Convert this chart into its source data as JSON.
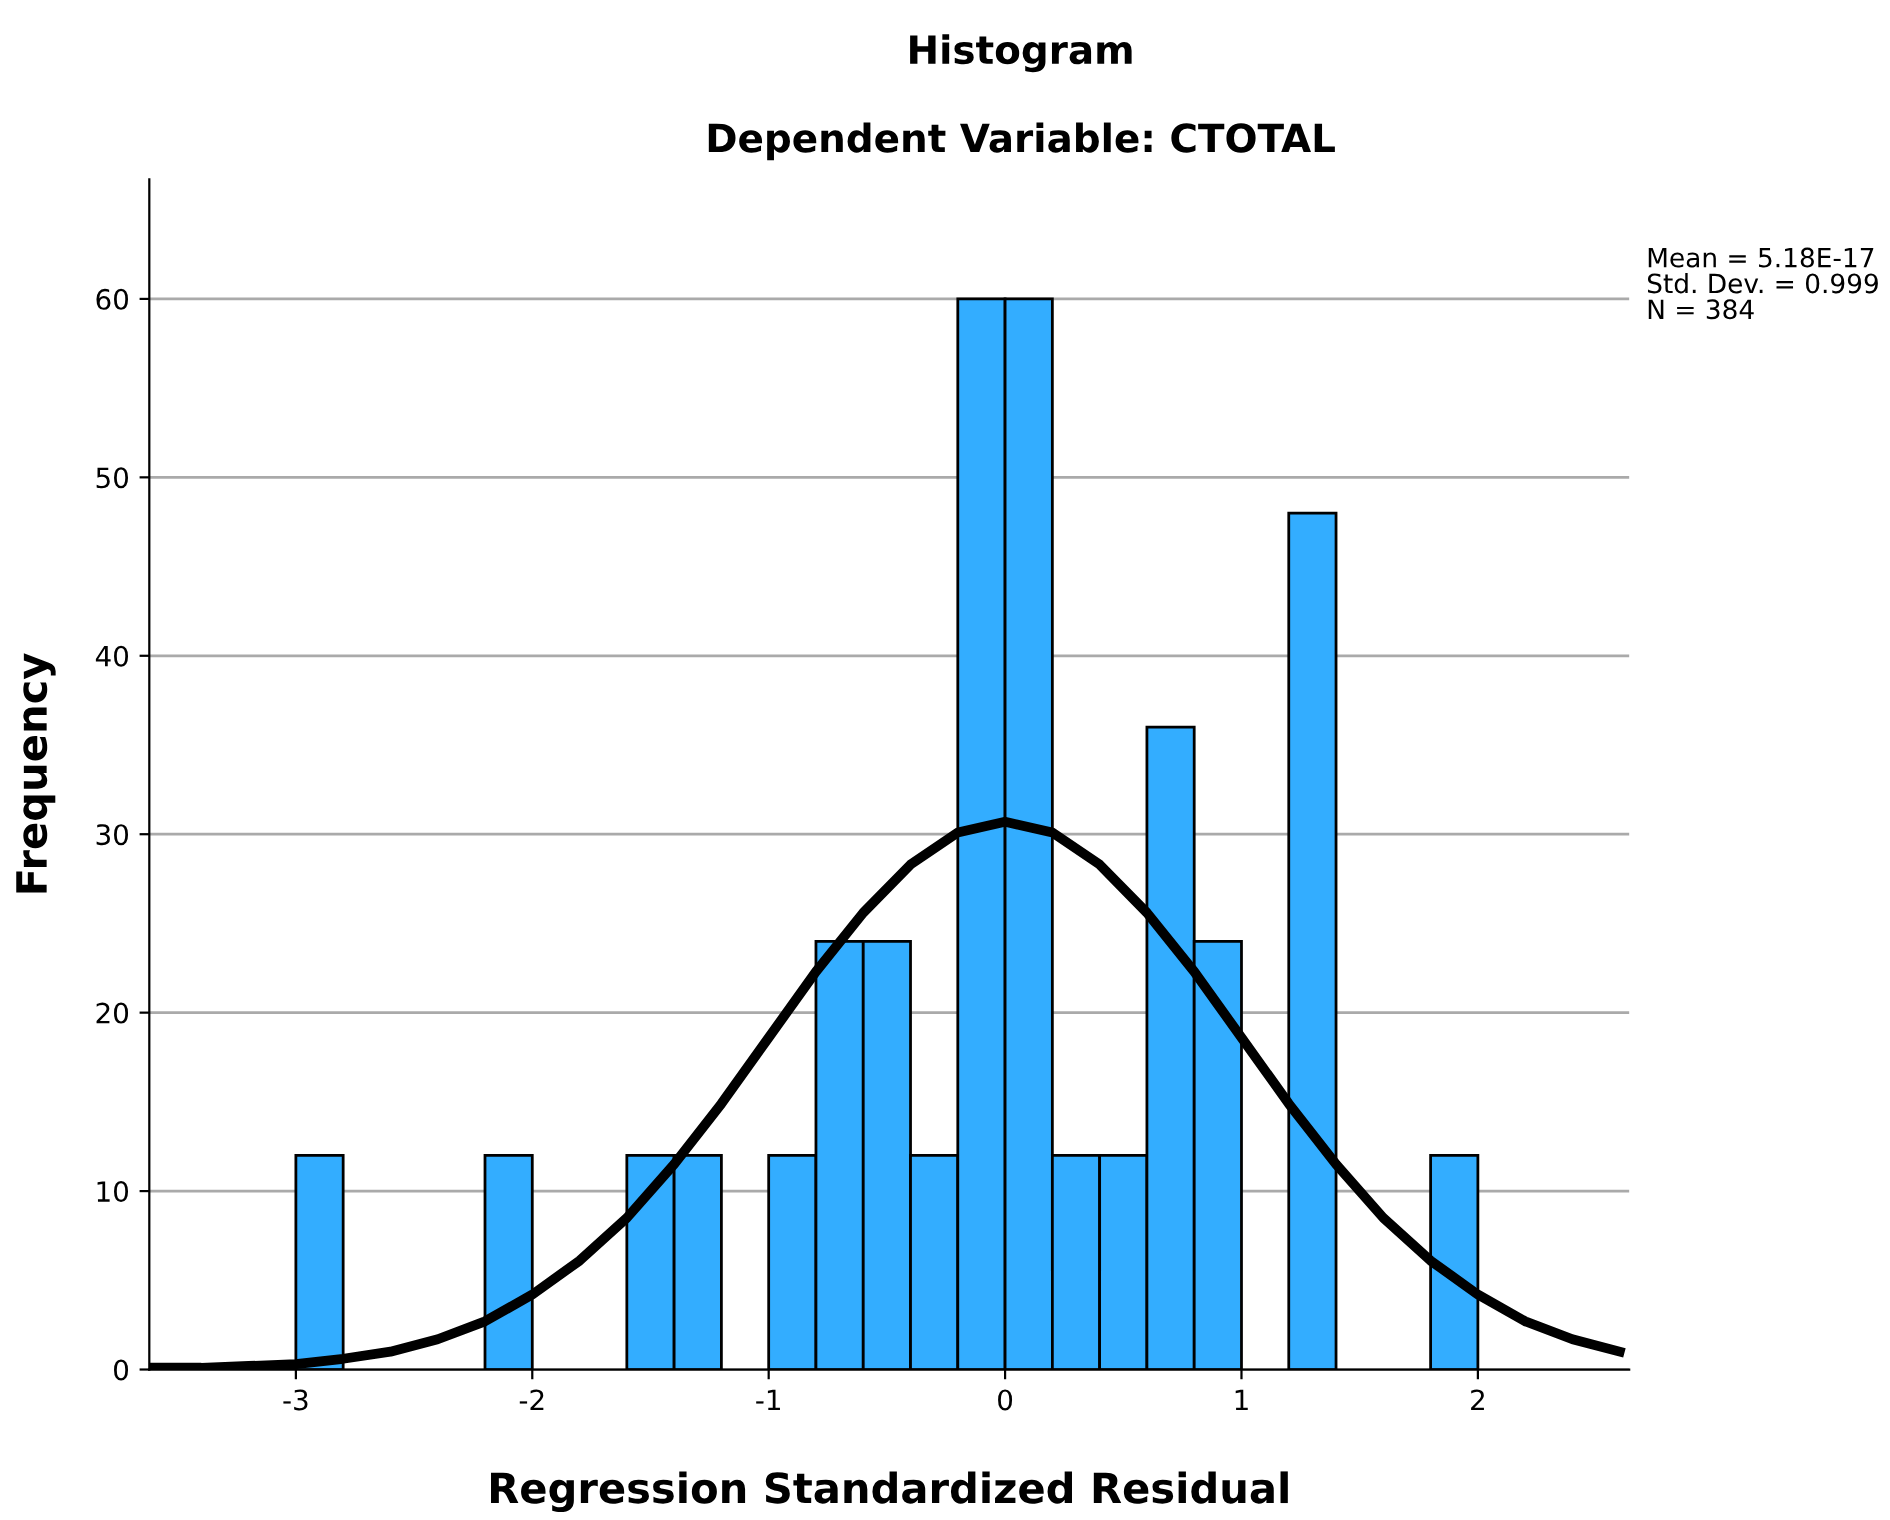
{
  "chart_data": {
    "type": "histogram",
    "title": "Histogram",
    "subtitle": "Dependent Variable: CTOTAL",
    "xlabel": "Regression Standardized Residual",
    "ylabel": "Frequency",
    "bins": [
      -3.0,
      -2.8,
      -2.6,
      -2.4,
      -2.2,
      -2.0,
      -1.8,
      -1.6,
      -1.4,
      -1.2,
      -1.0,
      -0.8,
      -0.6,
      -0.4,
      -0.2,
      0.0,
      0.2,
      0.4,
      0.6,
      0.8,
      1.0,
      1.2,
      1.4,
      1.6,
      1.8,
      2.0
    ],
    "values": [
      12,
      0,
      0,
      0,
      12,
      0,
      0,
      12,
      12,
      0,
      12,
      24,
      24,
      12,
      60,
      60,
      12,
      12,
      36,
      24,
      0,
      48,
      0,
      0,
      12
    ],
    "color": "#33adff",
    "series": [
      {
        "type": "line",
        "color": "#000000",
        "x": [
          -3.6,
          -3.4,
          -3.2,
          -3.0,
          -2.8,
          -2.6,
          -2.4,
          -2.2,
          -2.0,
          -1.8,
          -1.6,
          -1.4,
          -1.2,
          -1.0,
          -0.8,
          -0.6,
          -0.4,
          -0.2,
          0.0,
          0.2,
          0.4,
          0.6,
          0.8,
          1.0,
          1.2,
          1.4,
          1.6,
          1.8,
          2.0,
          2.2,
          2.4,
          2.6
        ],
        "values": [
          0.1,
          0.1,
          0.2,
          0.3,
          0.6,
          1.0,
          1.7,
          2.7,
          4.2,
          6.1,
          8.5,
          11.5,
          14.9,
          18.6,
          22.3,
          25.6,
          28.3,
          30.1,
          30.7,
          30.1,
          28.3,
          25.6,
          22.3,
          18.6,
          14.9,
          11.5,
          8.5,
          6.1,
          4.2,
          2.7,
          1.7,
          1.0
        ]
      }
    ],
    "xlim": [
      -3.62,
      2.64
    ],
    "ylim": [
      0,
      66.7
    ],
    "xticks": [
      -3,
      -2,
      -1,
      0,
      1,
      2
    ],
    "yticks": [
      0,
      10,
      20,
      30,
      40,
      50,
      60
    ],
    "grid": "y",
    "annotations": [
      "Mean = 5.18E-17",
      "Std. Dev. = 0.999",
      "N = 384"
    ]
  }
}
